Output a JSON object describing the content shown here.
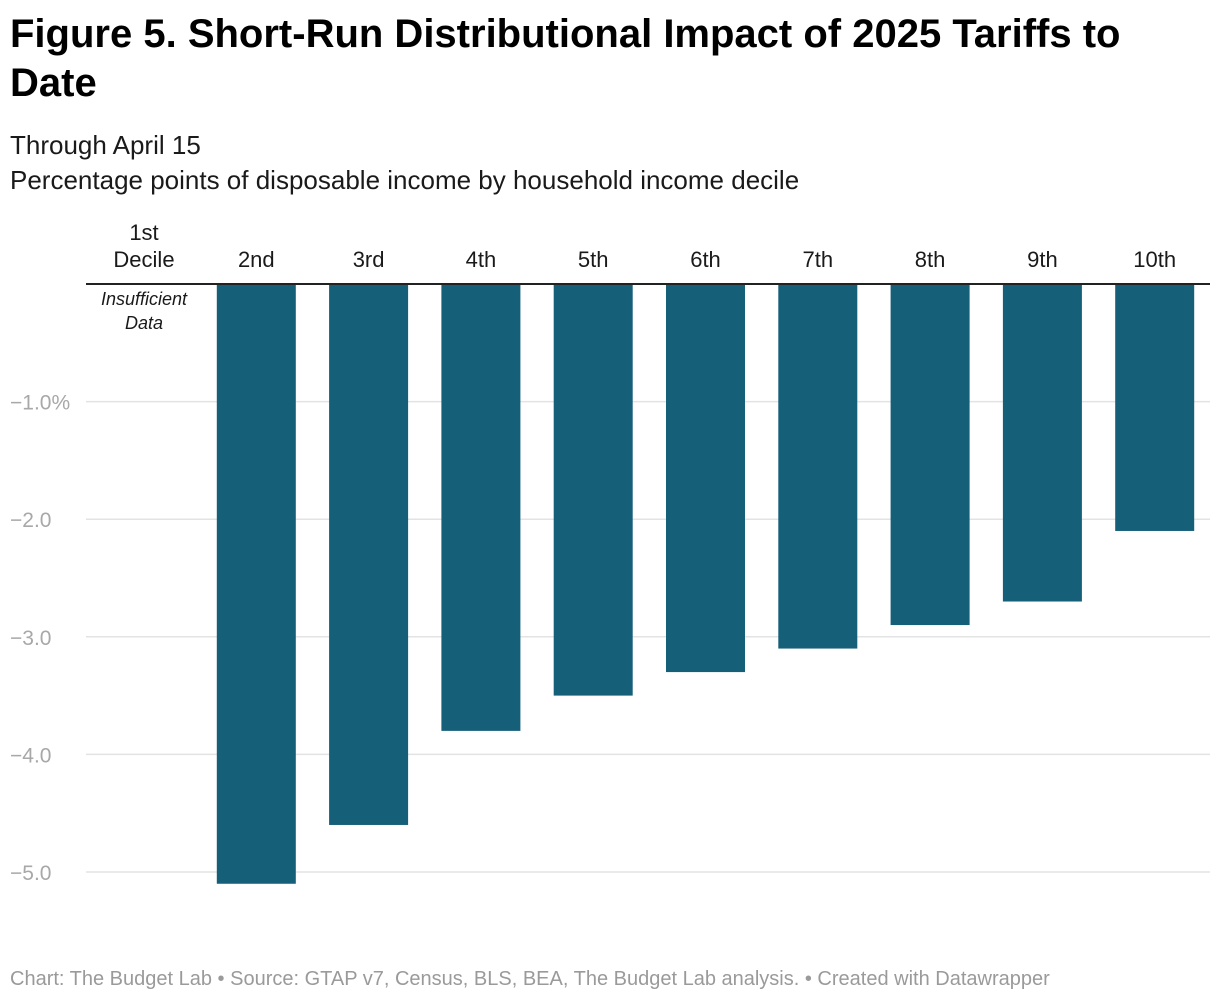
{
  "title": "Figure 5. Short-Run Distributional Impact of 2025 Tariffs to Date",
  "subtitle_lines": [
    "Through April 15",
    "Percentage points of disposable income by household income decile"
  ],
  "footer": "Chart: The Budget Lab • Source: GTAP v7, Census, BLS, BEA, The Budget Lab analysis. • Created with Datawrapper",
  "chart_data": {
    "type": "bar",
    "categories": [
      "1st Decile",
      "2nd",
      "3rd",
      "4th",
      "5th",
      "6th",
      "7th",
      "8th",
      "9th",
      "10th"
    ],
    "values": [
      null,
      -5.1,
      -4.6,
      -3.8,
      -3.5,
      -3.3,
      -3.1,
      -2.9,
      -2.7,
      -2.1
    ],
    "annotations": [
      {
        "category": "1st Decile",
        "text": "Insufficient Data"
      }
    ],
    "yticks": [
      {
        "value": -1,
        "label": "−1.0%"
      },
      {
        "value": -2,
        "label": "−2.0"
      },
      {
        "value": -3,
        "label": "−3.0"
      },
      {
        "value": -4,
        "label": "−4.0"
      },
      {
        "value": -5,
        "label": "−5.0"
      }
    ],
    "ylim": [
      -5.1,
      0
    ],
    "grid": true,
    "category_axis_position": "top",
    "bar_color": "#155f79",
    "grid_color": "#e3e3e3",
    "tick_label_color": "#a8a8a8"
  }
}
